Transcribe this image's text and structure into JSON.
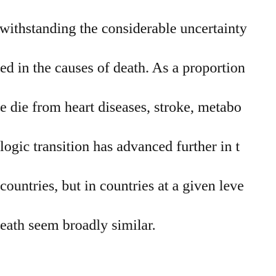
{
  "document": {
    "lines": [
      "withstanding the considerable uncertainty",
      "ed in the causes of death. As a proportion",
      "e die from heart diseases, stroke, metabo",
      "logic transition has advanced further in t",
      "countries, but in countries at a given leve",
      "eath seem broadly similar."
    ]
  }
}
